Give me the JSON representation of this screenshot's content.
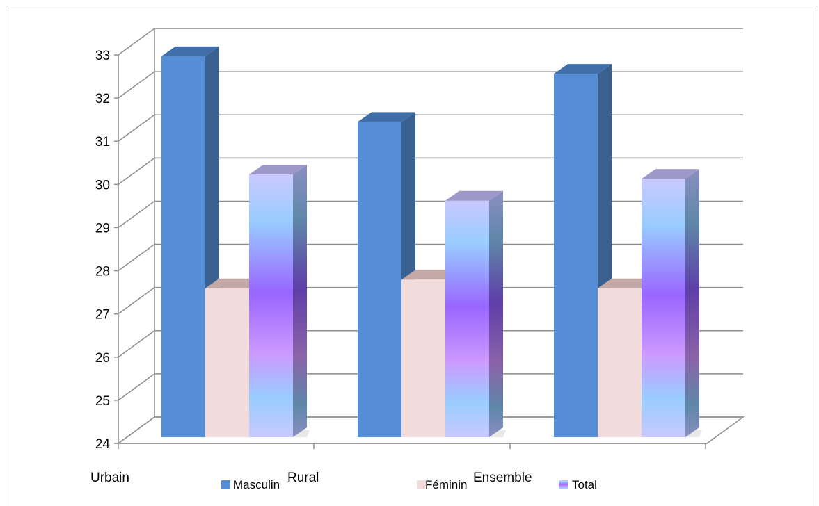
{
  "chart_data": {
    "type": "bar",
    "categories": [
      "Urbain",
      "Rural",
      "Ensemble"
    ],
    "series": [
      {
        "name": "Masculin",
        "values": [
          32.7,
          31.2,
          32.3
        ],
        "color": "#558ed5",
        "side_color": "#3a6090",
        "top_color": "#3f6ea8"
      },
      {
        "name": "Féminin",
        "values": [
          27.4,
          27.6,
          27.4
        ],
        "color": "#f2dcdb",
        "side_color": "#d9c3c2",
        "top_color": "#c4a8a6"
      },
      {
        "name": "Total",
        "values": [
          30.0,
          29.4,
          29.9
        ],
        "color": "#9966ff",
        "side_color": "#6e6a9e",
        "top_color": "#9d98c8"
      }
    ],
    "yticks": [
      24,
      25,
      26,
      27,
      28,
      29,
      30,
      31,
      32,
      33
    ],
    "ylim": [
      24,
      33
    ],
    "grid": true,
    "legend_position": "bottom",
    "style": "3d-clustered-column"
  }
}
